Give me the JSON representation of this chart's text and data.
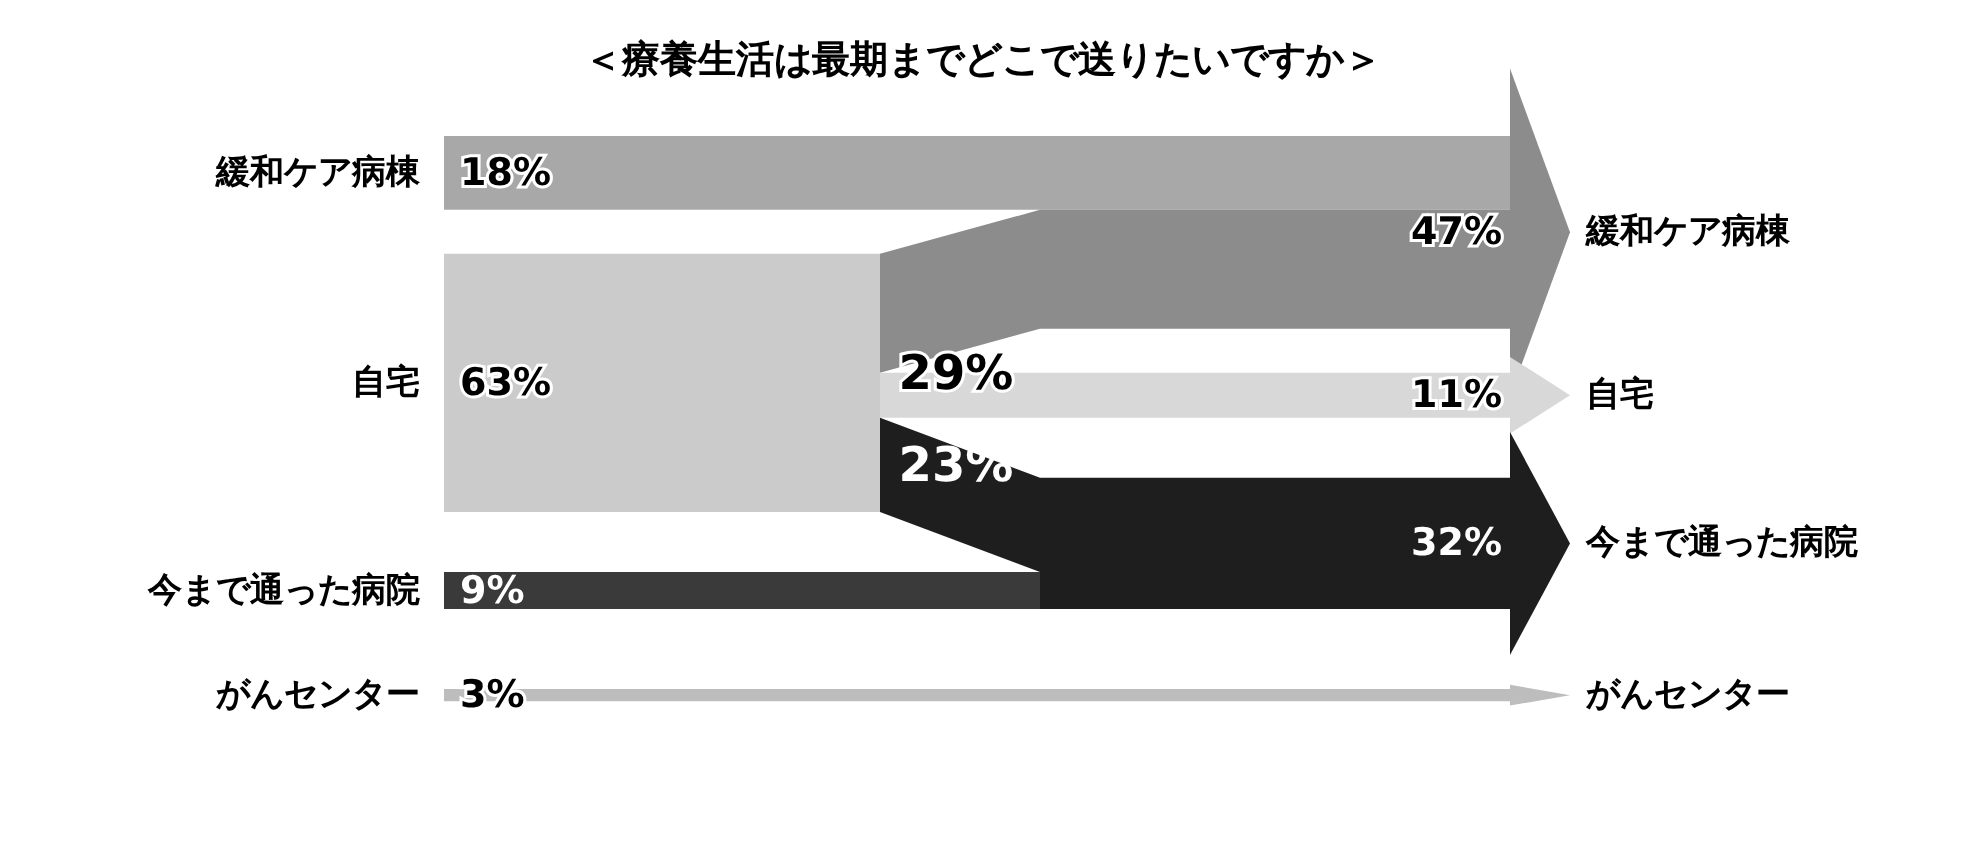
{
  "chart_data": {
    "type": "other",
    "title": "＜療養生活は最期までどこで送りたいですか＞",
    "categories": [
      "緩和ケア病棟",
      "自宅",
      "今まで通った病院",
      "がんセンター"
    ],
    "series": [
      {
        "values": [
          18,
          63,
          9,
          3
        ],
        "value_labels": [
          "18%",
          "63%",
          "9%",
          "3%"
        ],
        "colors": [
          "#a8a8a8",
          "#cbcbcb",
          "#3a3a3a",
          "#bdbdbd"
        ]
      },
      {
        "values": [
          47,
          11,
          32,
          null
        ],
        "value_labels": [
          "47%",
          "11%",
          "32%",
          null
        ],
        "colors": [
          "#8c8c8c",
          "#d8d8d8",
          "#1e1e1e",
          "#bdbdbd"
        ]
      }
    ],
    "annotations": [
      "29%",
      "23%"
    ]
  }
}
